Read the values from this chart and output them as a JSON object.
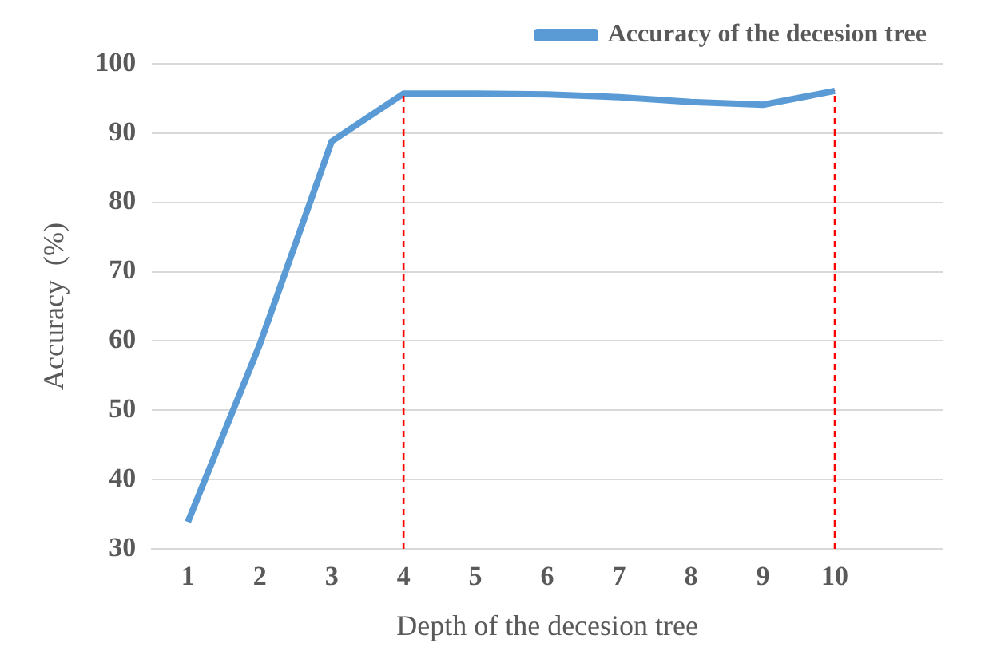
{
  "chart_data": {
    "type": "line",
    "xlabel": "Depth of the decesion tree",
    "ylabel": "Accuracy  (%)",
    "categories": [
      "1",
      "2",
      "3",
      "4",
      "5",
      "6",
      "7",
      "8",
      "9",
      "10",
      null
    ],
    "series": [
      {
        "name": "Accuracy of the decesion tree",
        "color": "#5b9bd5",
        "values": [
          33.9,
          59.5,
          88.8,
          95.7,
          95.7,
          95.6,
          95.2,
          94.5,
          94.1,
          96.1,
          null
        ]
      }
    ],
    "ylim": [
      30,
      100
    ],
    "yticks": [
      30,
      40,
      50,
      60,
      70,
      80,
      90,
      100
    ],
    "grid": "y",
    "legend": "top right",
    "marker": "none",
    "line_style": "solid",
    "ref_lines": [
      {
        "axis": "x",
        "value": "4",
        "color": "#ff0000",
        "line_style": "dashed"
      },
      {
        "axis": "x",
        "value": "10",
        "color": "#ff0000",
        "line_style": "dashed"
      }
    ]
  }
}
